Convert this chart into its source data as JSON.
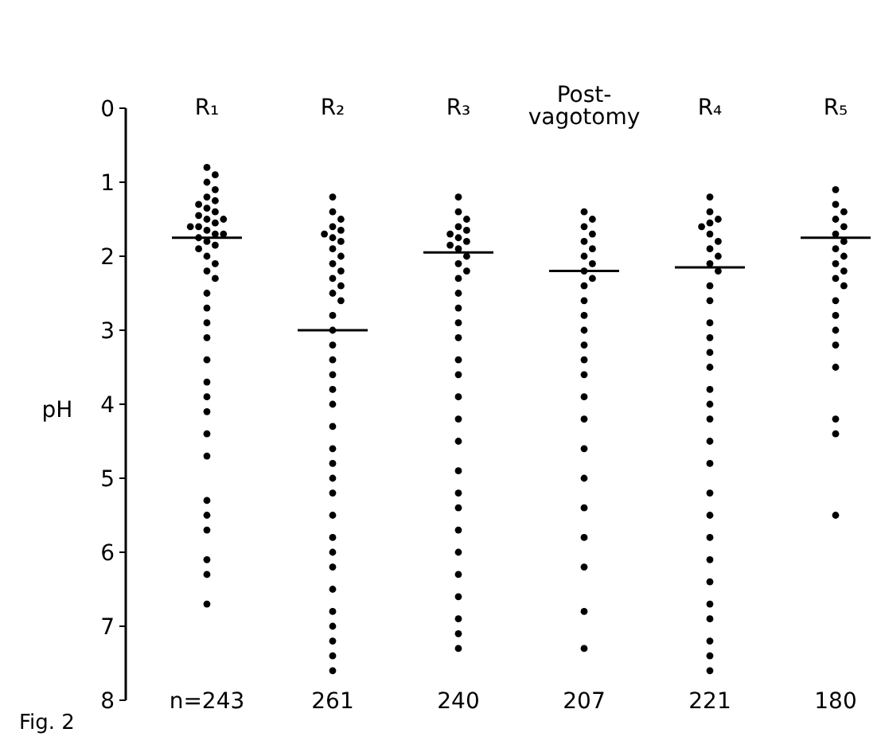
{
  "chart_data": {
    "type": "scatter",
    "ylabel": "pH",
    "categories": [
      "R₁",
      "R₂",
      "R₃",
      "Post-vagotomy",
      "R₄",
      "R₅"
    ],
    "ylim": [
      8,
      0
    ],
    "yticks": [
      0,
      1,
      2,
      3,
      4,
      5,
      6,
      7,
      8
    ],
    "grid": false,
    "marker": "circle",
    "series": [
      {
        "color": "#000000",
        "x": [
          "R₁",
          "R₁",
          "R₁",
          "R₁",
          "R₁",
          "R₁",
          "R₁",
          "R₁",
          "R₁",
          "R₁",
          "R₁",
          "R₁",
          "R₁",
          "R₁",
          "R₁",
          "R₁",
          "R₁",
          "R₁",
          "R₁",
          "R₁",
          "R₁",
          "R₁",
          "R₁",
          "R₁",
          "R₁",
          "R₁",
          "R₁",
          "R₁",
          "R₁",
          "R₁",
          "R₁",
          "R₁",
          "R₁",
          "R₁",
          "R₁",
          "R₁",
          "R₁",
          "R₁",
          "R₁",
          "R₁",
          "R₁",
          "R₁"
        ],
        "values": [
          0.8,
          0.9,
          1.0,
          1.1,
          1.2,
          1.25,
          1.3,
          1.35,
          1.4,
          1.45,
          1.5,
          1.5,
          1.55,
          1.6,
          1.6,
          1.65,
          1.7,
          1.7,
          1.75,
          1.8,
          1.85,
          1.9,
          2.0,
          2.1,
          2.2,
          2.3,
          2.5,
          2.7,
          2.9,
          3.1,
          3.4,
          3.7,
          3.9,
          4.1,
          4.4,
          4.7,
          5.3,
          5.5,
          5.7,
          6.1,
          6.3,
          6.7
        ]
      },
      {
        "color": "#000000",
        "x": [
          "R₂",
          "R₂",
          "R₂",
          "R₂",
          "R₂",
          "R₂",
          "R₂",
          "R₂",
          "R₂",
          "R₂",
          "R₂",
          "R₂",
          "R₂",
          "R₂",
          "R₂",
          "R₂",
          "R₂",
          "R₂",
          "R₂",
          "R₂",
          "R₂",
          "R₂",
          "R₂",
          "R₂",
          "R₂",
          "R₂",
          "R₂",
          "R₂",
          "R₂",
          "R₂",
          "R₂",
          "R₂",
          "R₂",
          "R₂",
          "R₂",
          "R₂",
          "R₂",
          "R₂"
        ],
        "values": [
          1.2,
          1.4,
          1.5,
          1.6,
          1.65,
          1.7,
          1.75,
          1.8,
          1.9,
          2.0,
          2.1,
          2.2,
          2.3,
          2.4,
          2.5,
          2.6,
          2.8,
          3.0,
          3.2,
          3.4,
          3.6,
          3.8,
          4.0,
          4.3,
          4.6,
          4.8,
          5.0,
          5.2,
          5.5,
          5.8,
          6.0,
          6.2,
          6.5,
          6.8,
          7.0,
          7.2,
          7.4,
          7.6
        ]
      },
      {
        "color": "#000000",
        "x": [
          "R₃",
          "R₃",
          "R₃",
          "R₃",
          "R₃",
          "R₃",
          "R₃",
          "R₃",
          "R₃",
          "R₃",
          "R₃",
          "R₃",
          "R₃",
          "R₃",
          "R₃",
          "R₃",
          "R₃",
          "R₃",
          "R₃",
          "R₃",
          "R₃",
          "R₃",
          "R₃",
          "R₃",
          "R₃",
          "R₃",
          "R₃",
          "R₃",
          "R₃",
          "R₃",
          "R₃",
          "R₃",
          "R₃"
        ],
        "values": [
          1.2,
          1.4,
          1.5,
          1.6,
          1.65,
          1.7,
          1.75,
          1.8,
          1.85,
          1.9,
          2.0,
          2.1,
          2.2,
          2.3,
          2.5,
          2.7,
          2.9,
          3.1,
          3.4,
          3.6,
          3.9,
          4.2,
          4.5,
          4.9,
          5.2,
          5.4,
          5.7,
          6.0,
          6.3,
          6.6,
          6.9,
          7.1,
          7.3
        ]
      },
      {
        "color": "#000000",
        "x": [
          "Post-vagotomy",
          "Post-vagotomy",
          "Post-vagotomy",
          "Post-vagotomy",
          "Post-vagotomy",
          "Post-vagotomy",
          "Post-vagotomy",
          "Post-vagotomy",
          "Post-vagotomy",
          "Post-vagotomy",
          "Post-vagotomy",
          "Post-vagotomy",
          "Post-vagotomy",
          "Post-vagotomy",
          "Post-vagotomy",
          "Post-vagotomy",
          "Post-vagotomy",
          "Post-vagotomy",
          "Post-vagotomy",
          "Post-vagotomy",
          "Post-vagotomy",
          "Post-vagotomy",
          "Post-vagotomy",
          "Post-vagotomy",
          "Post-vagotomy",
          "Post-vagotomy"
        ],
        "values": [
          1.4,
          1.5,
          1.6,
          1.7,
          1.8,
          1.9,
          2.0,
          2.1,
          2.2,
          2.3,
          2.4,
          2.6,
          2.8,
          3.0,
          3.2,
          3.4,
          3.6,
          3.9,
          4.2,
          4.6,
          5.0,
          5.4,
          5.8,
          6.2,
          6.8,
          7.3
        ]
      },
      {
        "color": "#000000",
        "x": [
          "R₄",
          "R₄",
          "R₄",
          "R₄",
          "R₄",
          "R₄",
          "R₄",
          "R₄",
          "R₄",
          "R₄",
          "R₄",
          "R₄",
          "R₄",
          "R₄",
          "R₄",
          "R₄",
          "R₄",
          "R₄",
          "R₄",
          "R₄",
          "R₄",
          "R₄",
          "R₄",
          "R₄",
          "R₄",
          "R₄",
          "R₄",
          "R₄",
          "R₄",
          "R₄",
          "R₄",
          "R₄"
        ],
        "values": [
          1.2,
          1.4,
          1.5,
          1.55,
          1.6,
          1.7,
          1.8,
          1.9,
          2.0,
          2.1,
          2.2,
          2.4,
          2.6,
          2.9,
          3.1,
          3.3,
          3.5,
          3.8,
          4.0,
          4.2,
          4.5,
          4.8,
          5.2,
          5.5,
          5.8,
          6.1,
          6.4,
          6.7,
          6.9,
          7.2,
          7.4,
          7.6
        ]
      },
      {
        "color": "#000000",
        "x": [
          "R₅",
          "R₅",
          "R₅",
          "R₅",
          "R₅",
          "R₅",
          "R₅",
          "R₅",
          "R₅",
          "R₅",
          "R₅",
          "R₅",
          "R₅",
          "R₅",
          "R₅",
          "R₅",
          "R₅",
          "R₅",
          "R₅",
          "R₅",
          "R₅"
        ],
        "values": [
          1.1,
          1.3,
          1.4,
          1.5,
          1.6,
          1.7,
          1.8,
          1.9,
          2.0,
          2.1,
          2.2,
          2.3,
          2.4,
          2.6,
          2.8,
          3.0,
          3.2,
          3.5,
          4.2,
          4.4,
          5.5
        ]
      },
      {
        "type": "box",
        "color": "#000000",
        "boxes": [
          {
            "low": 1.75,
            "q1": 1.75,
            "median": 1.75,
            "q3": 1.75,
            "high": 1.75
          },
          {
            "low": 3.0,
            "q1": 3.0,
            "median": 3.0,
            "q3": 3.0,
            "high": 3.0
          },
          {
            "low": 1.95,
            "q1": 1.95,
            "median": 1.95,
            "q3": 1.95,
            "high": 1.95
          },
          {
            "low": 2.2,
            "q1": 2.2,
            "median": 2.2,
            "q3": 2.2,
            "high": 2.2
          },
          {
            "low": 2.15,
            "q1": 2.15,
            "median": 2.15,
            "q3": 2.15,
            "high": 2.15
          },
          {
            "low": 1.75,
            "q1": 1.75,
            "median": 1.75,
            "q3": 1.75,
            "high": 1.75
          }
        ]
      }
    ],
    "annotations": [
      "n=243",
      "261",
      "240",
      "207",
      "221",
      "180",
      "Fig. 2"
    ]
  }
}
